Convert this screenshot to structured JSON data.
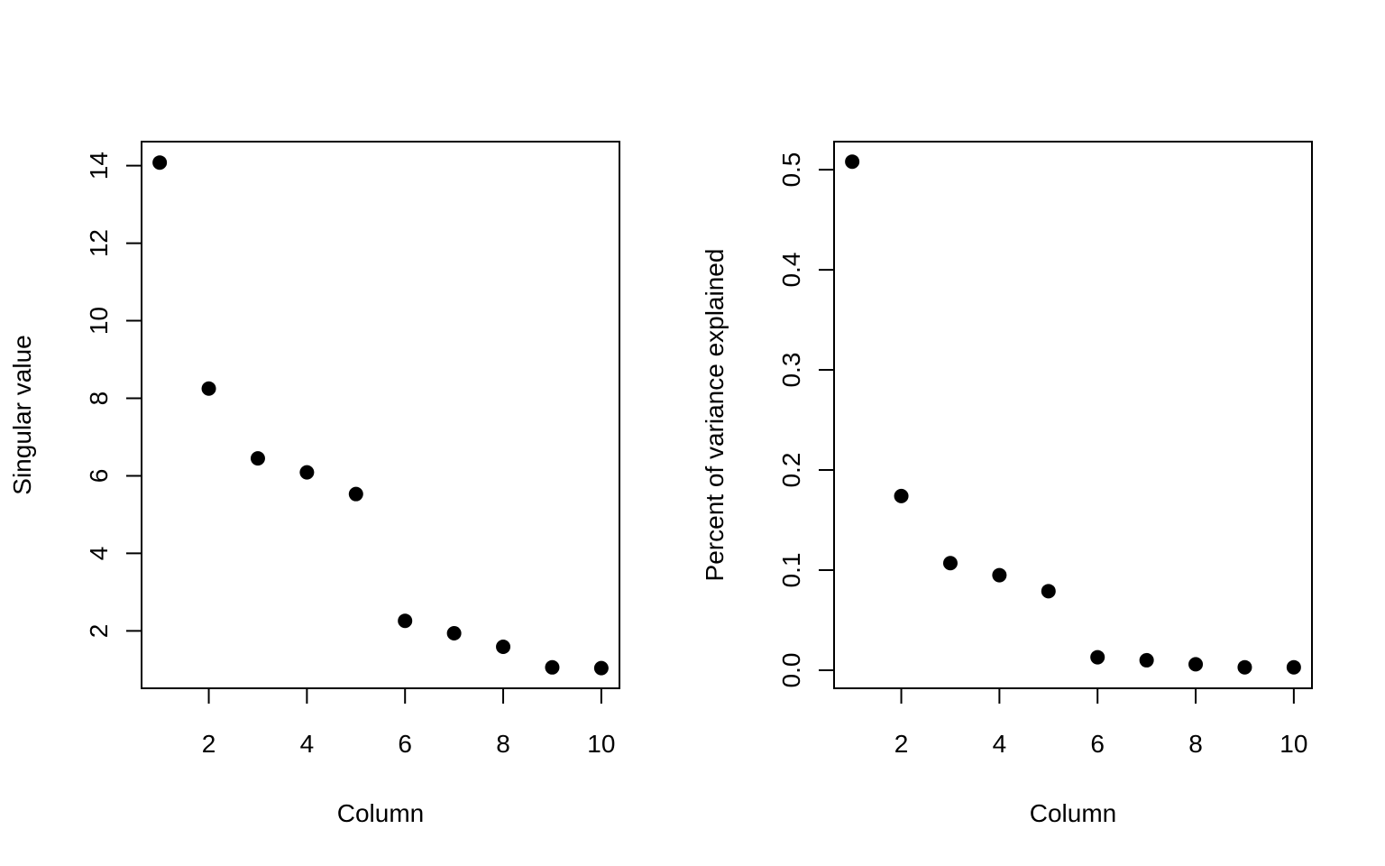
{
  "chart_data": [
    {
      "type": "scatter",
      "xlabel": "Column",
      "ylabel": "Singular value",
      "xlim": [
        0.63,
        10.37
      ],
      "ylim": [
        0.52,
        14.62
      ],
      "xticks": [
        2,
        4,
        6,
        8,
        10
      ],
      "yticks": [
        2,
        4,
        6,
        8,
        10,
        12,
        14
      ],
      "ytick_labels": [
        "2",
        "4",
        "6",
        "8",
        "10",
        "12",
        "14"
      ],
      "grid": false,
      "x": [
        1,
        2,
        3,
        4,
        5,
        6,
        7,
        8,
        9,
        10
      ],
      "y": [
        14.08,
        8.25,
        6.45,
        6.09,
        5.53,
        2.26,
        1.94,
        1.59,
        1.06,
        1.04
      ],
      "marker_color": "#000000"
    },
    {
      "type": "scatter",
      "xlabel": "Column",
      "ylabel": "Percent of variance explained",
      "xlim": [
        0.63,
        10.37
      ],
      "ylim": [
        -0.018,
        0.528
      ],
      "xticks": [
        2,
        4,
        6,
        8,
        10
      ],
      "yticks": [
        0.0,
        0.1,
        0.2,
        0.3,
        0.4,
        0.5
      ],
      "ytick_labels": [
        "0.0",
        "0.1",
        "0.2",
        "0.3",
        "0.4",
        "0.5"
      ],
      "grid": false,
      "x": [
        1,
        2,
        3,
        4,
        5,
        6,
        7,
        8,
        9,
        10
      ],
      "y": [
        0.508,
        0.174,
        0.107,
        0.095,
        0.079,
        0.013,
        0.01,
        0.006,
        0.003,
        0.003
      ],
      "marker_color": "#000000"
    }
  ]
}
